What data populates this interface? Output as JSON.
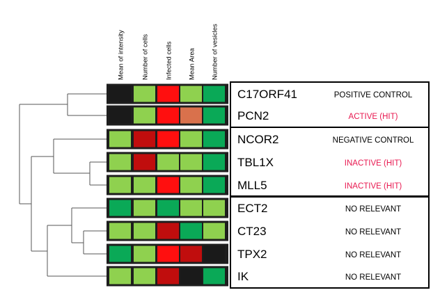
{
  "heatmap": {
    "columns": [
      "Mean of intensity",
      "Number of cells",
      "Infected cells",
      "Mean Area",
      "Number of vesicles"
    ],
    "legend_colors": {
      "black": "#1a1a1a",
      "light_green": "#8fd14f",
      "green": "#0aa957",
      "red": "#ff0f0f",
      "dark_red": "#c00d0d",
      "salmon": "#d9714c"
    },
    "rows": [
      {
        "gene": "C17ORF41",
        "status": "POSITIVE CONTROL",
        "status_color": "#000000",
        "cells": [
          "black",
          "light_green",
          "red",
          "light_green",
          "green"
        ]
      },
      {
        "gene": "PCN2",
        "status": "ACTIVE (HIT)",
        "status_color": "#e8174f",
        "cells": [
          "black",
          "light_green",
          "red",
          "salmon",
          "green"
        ]
      },
      {
        "gene": "NCOR2",
        "status": "NEGATIVE CONTROL",
        "status_color": "#000000",
        "cells": [
          "light_green",
          "dark_red",
          "red",
          "light_green",
          "green"
        ]
      },
      {
        "gene": "TBL1X",
        "status": "INACTIVE (HIT)",
        "status_color": "#e8174f",
        "cells": [
          "light_green",
          "dark_red",
          "light_green",
          "light_green",
          "green"
        ]
      },
      {
        "gene": "MLL5",
        "status": "INACTIVE (HIT)",
        "status_color": "#e8174f",
        "cells": [
          "light_green",
          "light_green",
          "red",
          "light_green",
          "green"
        ]
      },
      {
        "gene": "ECT2",
        "status": "NO RELEVANT",
        "status_color": "#000000",
        "cells": [
          "green",
          "light_green",
          "green",
          "light_green",
          "light_green"
        ]
      },
      {
        "gene": "CT23",
        "status": "NO RELEVANT",
        "status_color": "#000000",
        "cells": [
          "light_green",
          "light_green",
          "dark_red",
          "green",
          "light_green"
        ]
      },
      {
        "gene": "TPX2",
        "status": "NO RELEVANT",
        "status_color": "#000000",
        "cells": [
          "green",
          "light_green",
          "red",
          "dark_red",
          "black"
        ]
      },
      {
        "gene": "IK",
        "status": "NO RELEVANT",
        "status_color": "#000000",
        "cells": [
          "light_green",
          "light_green",
          "dark_red",
          "black",
          "green"
        ]
      }
    ],
    "groups": [
      {
        "name": "positive-control-group",
        "rows": [
          0,
          1
        ]
      },
      {
        "name": "negative-control-group",
        "rows": [
          2,
          3,
          4
        ]
      },
      {
        "name": "no-relevant-group",
        "rows": [
          5,
          6,
          7,
          8
        ]
      }
    ]
  }
}
